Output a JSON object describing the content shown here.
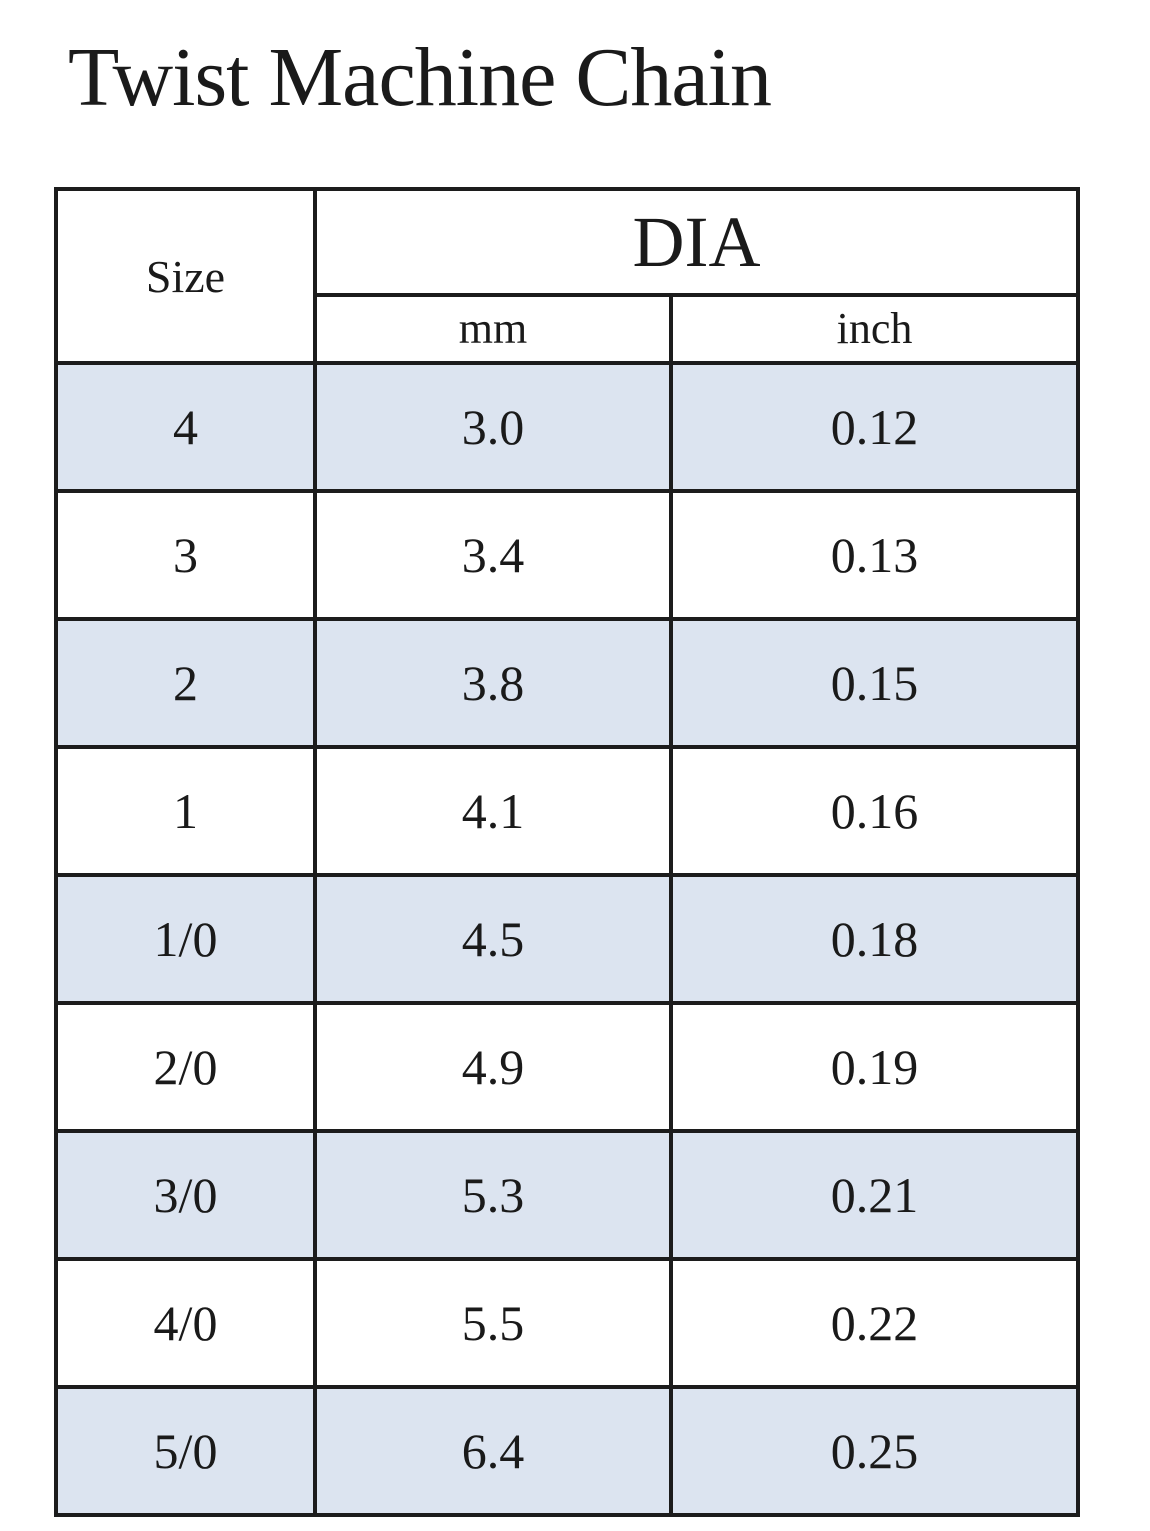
{
  "title": "Twist Machine Chain",
  "table": {
    "headers": {
      "size": "Size",
      "dia": "DIA",
      "mm": "mm",
      "inch": "inch"
    },
    "rows": [
      {
        "size": "4",
        "mm": "3.0",
        "inch": "0.12"
      },
      {
        "size": "3",
        "mm": "3.4",
        "inch": "0.13"
      },
      {
        "size": "2",
        "mm": "3.8",
        "inch": "0.15"
      },
      {
        "size": "1",
        "mm": "4.1",
        "inch": "0.16"
      },
      {
        "size": "1/0",
        "mm": "4.5",
        "inch": "0.18"
      },
      {
        "size": "2/0",
        "mm": "4.9",
        "inch": "0.19"
      },
      {
        "size": "3/0",
        "mm": "5.3",
        "inch": "0.21"
      },
      {
        "size": "4/0",
        "mm": "5.5",
        "inch": "0.22"
      },
      {
        "size": "5/0",
        "mm": "6.4",
        "inch": "0.25"
      }
    ],
    "shaded_row_color": "#dce4f0",
    "border_color": "#1c1c1c"
  }
}
